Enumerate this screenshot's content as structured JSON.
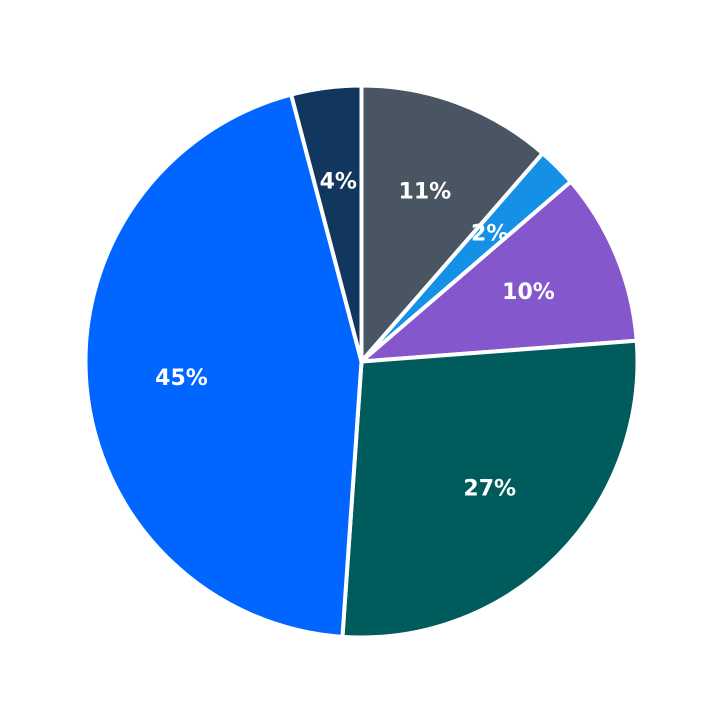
{
  "chart_data": {
    "type": "pie",
    "start_angle": "12 o'clock",
    "direction": "clockwise",
    "slices": [
      {
        "label": "11%",
        "value": 11.4,
        "color": "#4a5563"
      },
      {
        "label": "2%",
        "value": 2.3,
        "color": "#1490e6"
      },
      {
        "label": "10%",
        "value": 10.1,
        "color": "#8457cc"
      },
      {
        "label": "27%",
        "value": 27.3,
        "color": "#005c5c"
      },
      {
        "label": "45%",
        "value": 44.8,
        "color": "#0066ff"
      },
      {
        "label": "4%",
        "value": 4.1,
        "color": "#12375f"
      }
    ],
    "legend": "none",
    "grid": false
  }
}
